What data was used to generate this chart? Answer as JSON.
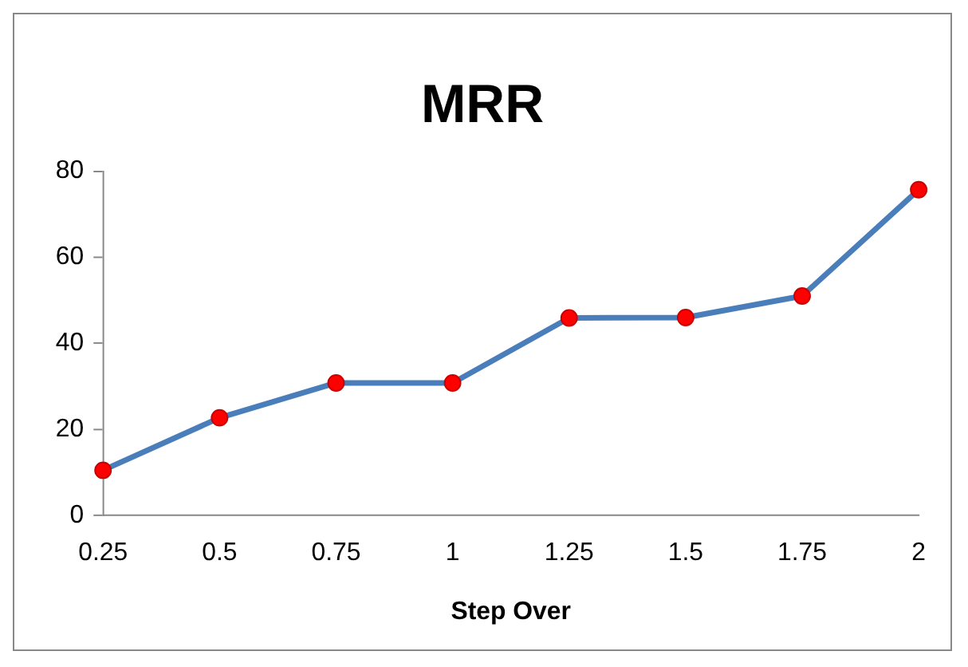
{
  "chart_data": {
    "type": "line",
    "title": "MRR",
    "xlabel": "Step Over",
    "categories": [
      "0.25",
      "0.5",
      "0.75",
      "1",
      "1.25",
      "1.5",
      "1.75",
      "2"
    ],
    "series": [
      {
        "color": "#4a7ebb",
        "values": [
          10.5,
          22.7,
          30.8,
          30.8,
          45.9,
          46,
          51,
          75.7
        ]
      }
    ],
    "ylim": [
      0,
      80
    ],
    "yticks": [
      0,
      20,
      40,
      60,
      80
    ],
    "grid": false,
    "legend": false,
    "marker": "circle"
  }
}
